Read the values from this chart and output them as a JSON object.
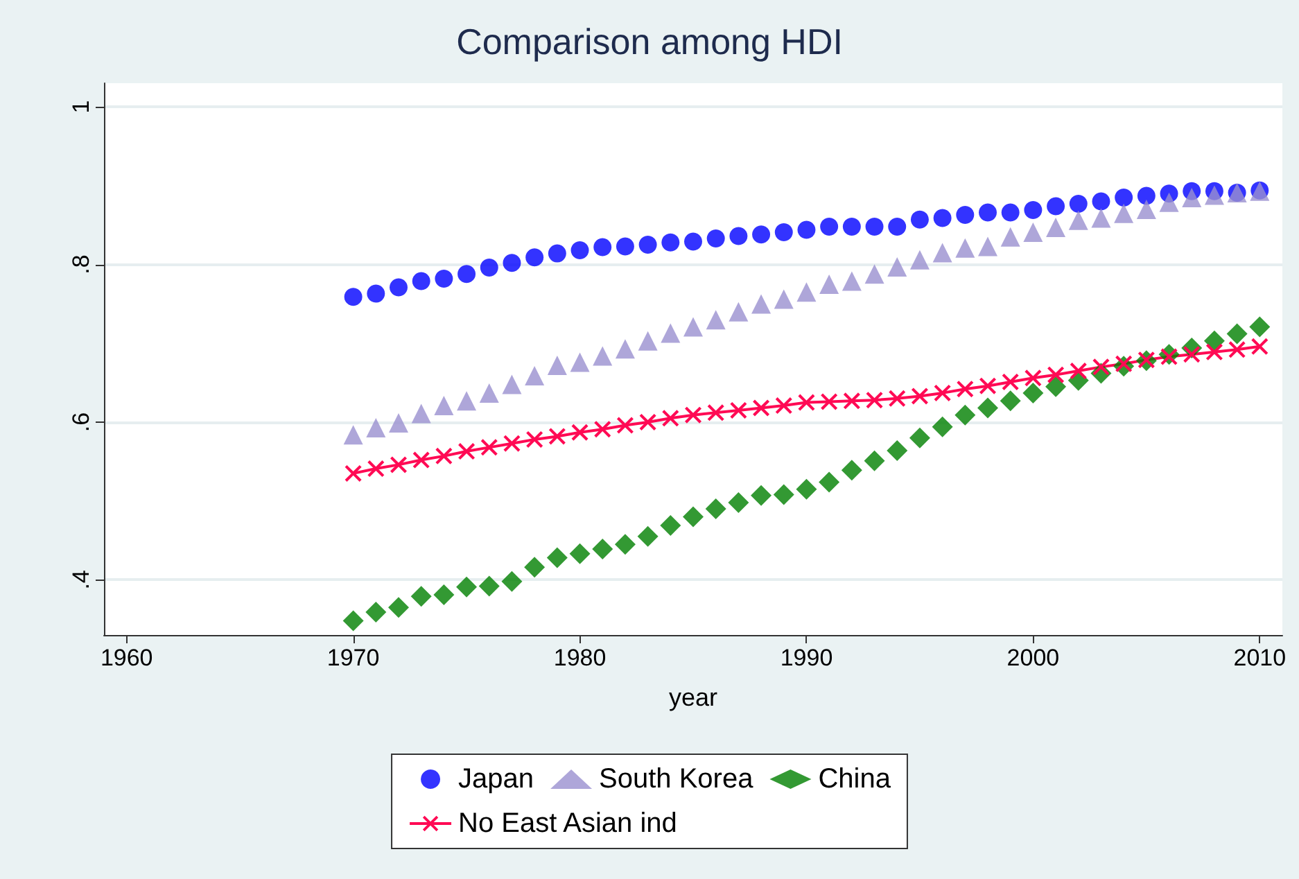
{
  "chart_data": {
    "type": "scatter",
    "title": "Comparison among HDI",
    "xlabel": "year",
    "x": [
      1970,
      1971,
      1972,
      1973,
      1974,
      1975,
      1976,
      1977,
      1978,
      1979,
      1980,
      1981,
      1982,
      1983,
      1984,
      1985,
      1986,
      1987,
      1988,
      1989,
      1990,
      1991,
      1992,
      1993,
      1994,
      1995,
      1996,
      1997,
      1998,
      1999,
      2000,
      2001,
      2002,
      2003,
      2004,
      2005,
      2006,
      2007,
      2008,
      2009,
      2010
    ],
    "series": [
      {
        "name": "Japan",
        "marker": "circle",
        "color": "#0000ff",
        "values": [
          0.759,
          0.763,
          0.771,
          0.779,
          0.782,
          0.788,
          0.796,
          0.802,
          0.809,
          0.814,
          0.818,
          0.822,
          0.823,
          0.825,
          0.828,
          0.829,
          0.833,
          0.836,
          0.838,
          0.841,
          0.844,
          0.848,
          0.848,
          0.848,
          0.848,
          0.857,
          0.859,
          0.863,
          0.866,
          0.866,
          0.869,
          0.874,
          0.877,
          0.88,
          0.885,
          0.887,
          0.89,
          0.893,
          0.893,
          0.891,
          0.894
        ]
      },
      {
        "name": "South Korea",
        "marker": "triangle",
        "color": "#9a90d0",
        "values": [
          0.584,
          0.593,
          0.599,
          0.611,
          0.621,
          0.627,
          0.637,
          0.648,
          0.659,
          0.672,
          0.676,
          0.684,
          0.693,
          0.703,
          0.713,
          0.721,
          0.73,
          0.74,
          0.75,
          0.756,
          0.765,
          0.775,
          0.779,
          0.788,
          0.797,
          0.806,
          0.815,
          0.821,
          0.823,
          0.835,
          0.841,
          0.847,
          0.856,
          0.859,
          0.865,
          0.87,
          0.879,
          0.885,
          0.888,
          0.891,
          0.893
        ]
      },
      {
        "name": "China",
        "marker": "diamond",
        "color": "#008000",
        "values": [
          0.348,
          0.359,
          0.365,
          0.379,
          0.381,
          0.391,
          0.392,
          0.398,
          0.416,
          0.428,
          0.433,
          0.439,
          0.445,
          0.455,
          0.469,
          0.48,
          0.49,
          0.498,
          0.507,
          0.508,
          0.515,
          0.524,
          0.539,
          0.551,
          0.564,
          0.58,
          0.594,
          0.609,
          0.618,
          0.627,
          0.637,
          0.645,
          0.653,
          0.662,
          0.671,
          0.678,
          0.686,
          0.694,
          0.703,
          0.712,
          0.721
        ]
      },
      {
        "name": "No East Asian ind",
        "type": "line",
        "marker": "cross",
        "line_style": "solid",
        "color": "#ff0a54",
        "values": [
          0.535,
          0.541,
          0.546,
          0.552,
          0.557,
          0.563,
          0.568,
          0.573,
          0.578,
          0.582,
          0.587,
          0.591,
          0.596,
          0.6,
          0.605,
          0.609,
          0.612,
          0.615,
          0.618,
          0.621,
          0.625,
          0.626,
          0.627,
          0.628,
          0.63,
          0.633,
          0.637,
          0.642,
          0.646,
          0.651,
          0.656,
          0.66,
          0.665,
          0.67,
          0.674,
          0.679,
          0.683,
          0.686,
          0.689,
          0.692,
          0.696
        ]
      }
    ],
    "xlim": [
      1959,
      2011
    ],
    "xticks": [
      1960,
      1970,
      1980,
      1990,
      2000,
      2010
    ],
    "ylim": [
      0.33,
      1.03
    ],
    "yticks": [
      {
        "value": 0.4,
        "label": ".4"
      },
      {
        "value": 0.6,
        "label": ".6"
      },
      {
        "value": 0.8,
        "label": ".8"
      },
      {
        "value": 1,
        "label": "1"
      }
    ],
    "grid": "y",
    "legend": "bottom"
  }
}
